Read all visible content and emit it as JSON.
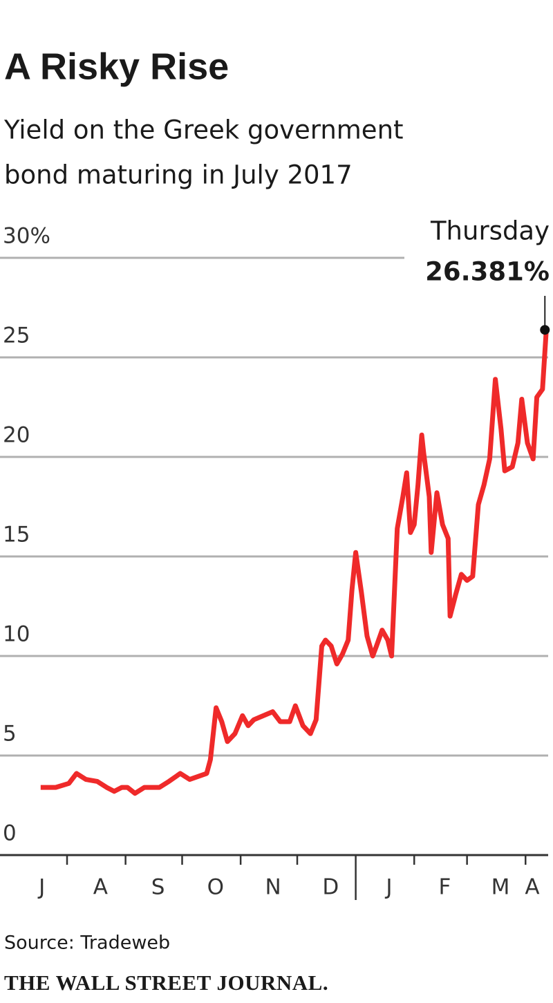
{
  "chart_data": {
    "type": "line",
    "title": "A Risky Rise",
    "subtitle": [
      "Yield on the Greek government",
      "bond maturing in July 2017"
    ],
    "categories": [
      "J",
      "A",
      "S",
      "O",
      "N",
      "D",
      "J",
      "F",
      "M",
      "A"
    ],
    "x": [
      17,
      25,
      32,
      36,
      41,
      47,
      52,
      56,
      60,
      63,
      67,
      72,
      80,
      85,
      91,
      96,
      102,
      105,
      107,
      110,
      113,
      116,
      120,
      124,
      127,
      130,
      135,
      140,
      144,
      149,
      152,
      156,
      160,
      163,
      166,
      168,
      171,
      174,
      177,
      180,
      182,
      184,
      187,
      190,
      193,
      195,
      198,
      201,
      203,
      206,
      209,
      211,
      213,
      215,
      217,
      219,
      220,
      223,
      224,
      227,
      230,
      233,
      234,
      237,
      240,
      243,
      246,
      249,
      252,
      255,
      258,
      261,
      263,
      267,
      270,
      272,
      275,
      278,
      280,
      283,
      285
    ],
    "series": [
      {
        "name": "Yield",
        "color": "#ef2a2a",
        "values": [
          3.4,
          3.4,
          3.6,
          4.1,
          3.8,
          3.7,
          3.4,
          3.2,
          3.4,
          3.4,
          3.1,
          3.4,
          3.4,
          3.7,
          4.1,
          3.8,
          4.0,
          4.1,
          4.8,
          7.4,
          6.7,
          5.7,
          6.1,
          7.0,
          6.5,
          6.8,
          7.0,
          7.2,
          6.7,
          6.7,
          7.5,
          6.5,
          6.1,
          6.8,
          10.5,
          10.8,
          10.5,
          9.6,
          10.1,
          10.8,
          13.3,
          15.2,
          13.2,
          11.0,
          10.0,
          10.5,
          11.3,
          10.8,
          10.0,
          16.4,
          18.0,
          19.2,
          16.2,
          16.6,
          18.6,
          21.1,
          20.2,
          18.0,
          15.2,
          18.2,
          16.6,
          15.9,
          12.0,
          13.1,
          14.1,
          13.8,
          14.0,
          17.6,
          18.6,
          19.9,
          23.9,
          21.4,
          19.3,
          19.5,
          20.7,
          22.9,
          20.7,
          19.9,
          23.0,
          23.4,
          26.381
        ]
      }
    ],
    "xlim": [
      0,
      286
    ],
    "xticks": [
      31,
      62,
      92,
      123,
      153,
      184,
      215,
      243,
      274
    ],
    "ylim": [
      0,
      30
    ],
    "yticks": [
      0,
      5,
      10,
      15,
      20,
      25,
      {
        "value": 30,
        "label": "30%"
      }
    ],
    "grid": true,
    "annotation": {
      "text": "Thursday",
      "value_label": "26.381%"
    },
    "source": "Source: Tradeweb",
    "publisher": "THE WALL STREET JOURNAL."
  }
}
